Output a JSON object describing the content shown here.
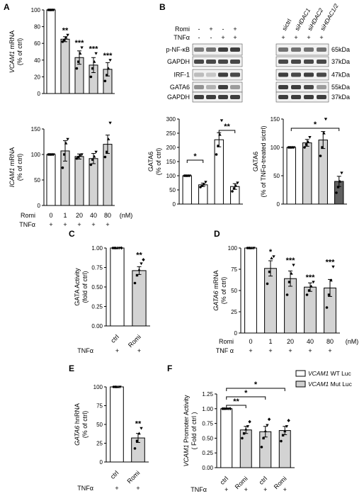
{
  "panels": {
    "A": {
      "letter": "A"
    },
    "B": {
      "letter": "B"
    },
    "C": {
      "letter": "C"
    },
    "D": {
      "letter": "D"
    },
    "E": {
      "letter": "E"
    },
    "F": {
      "letter": "F"
    }
  },
  "treatment_labels": {
    "romi": "Romi",
    "tnf": "TNFα",
    "tnf_spaced": "TNF α",
    "nm": "(nM)",
    "plus": "+",
    "minus": "-"
  },
  "western": {
    "left_rows": [
      "p-NF-κB",
      "GAPDH",
      "IRF-1",
      "GATA6",
      "GAPDH"
    ],
    "romi_signs": [
      "-",
      "+",
      "-",
      "+"
    ],
    "tnf_signs": [
      "-",
      "-",
      "+",
      "+"
    ],
    "right_lanes": [
      "sictrl",
      "siHDAC1",
      "siHDAC2",
      "siHDAC1/2"
    ],
    "right_tnf_signs": [
      "+",
      "+",
      "+",
      "+"
    ],
    "kda_labels": [
      "65kDa",
      "37kDa",
      "47kDa",
      "55kDa",
      "37kDa"
    ]
  },
  "chart_data": [
    {
      "id": "A-top",
      "type": "bar",
      "ylabel_italic": "VCAM1",
      "ylabel_rest": " mRNA",
      "ylabel2": "(% of ctrl)",
      "categories": [
        "0",
        "1",
        "20",
        "40",
        "80"
      ],
      "values": [
        100,
        65,
        43,
        34,
        29
      ],
      "errors": [
        0,
        3,
        8,
        9,
        8
      ],
      "points": [
        [
          100,
          100,
          100,
          100
        ],
        [
          62,
          64,
          67,
          70
        ],
        [
          30,
          38,
          48,
          55
        ],
        [
          20,
          30,
          38,
          48
        ],
        [
          15,
          22,
          30,
          40
        ]
      ],
      "sig": [
        "",
        "**",
        "***",
        "***",
        "***"
      ],
      "ylim": [
        0,
        100
      ],
      "yticks": [
        "0",
        "20",
        "40",
        "60",
        "80",
        "100"
      ]
    },
    {
      "id": "A-bottom",
      "type": "bar",
      "ylabel_italic": "ICAM1",
      "ylabel_rest": " mRNA",
      "ylabel2": "(% of ctrl)",
      "categories": [
        "0",
        "1",
        "20",
        "40",
        "80"
      ],
      "values": [
        100,
        107,
        96,
        92,
        120
      ],
      "errors": [
        0,
        20,
        5,
        10,
        18
      ],
      "points": [
        [
          100,
          100,
          100,
          100
        ],
        [
          74,
          100,
          122,
          130
        ],
        [
          92,
          95,
          98,
          100
        ],
        [
          80,
          90,
          96,
          105
        ],
        [
          95,
          105,
          130,
          162
        ]
      ],
      "sig": [
        "",
        "",
        "",
        "",
        ""
      ],
      "ylim": [
        0,
        150
      ],
      "yticks": [
        "0",
        "50",
        "100",
        "150"
      ]
    },
    {
      "id": "B-left",
      "type": "bar",
      "ylabel": "GATA6",
      "ylabel2": "(% of ctrl)",
      "values": [
        100,
        68,
        227,
        62
      ],
      "errors": [
        0,
        6,
        25,
        10
      ],
      "points": [
        [
          100,
          100,
          100,
          100
        ],
        [
          60,
          65,
          70,
          78
        ],
        [
          175,
          205,
          245,
          295
        ],
        [
          45,
          55,
          65,
          75
        ]
      ],
      "ylim": [
        0,
        300
      ],
      "yticks": [
        "0",
        "50",
        "100",
        "150",
        "200",
        "250",
        "300"
      ],
      "brackets": [
        {
          "from": 0,
          "to": 1,
          "label": "*"
        },
        {
          "from": 2,
          "to": 3,
          "label": "**"
        }
      ]
    },
    {
      "id": "B-right",
      "type": "bar",
      "ylabel": "GATA6",
      "ylabel2": "(% of TNFα-treated sictrl)",
      "values": [
        100,
        108,
        113,
        40
      ],
      "errors": [
        0,
        6,
        15,
        9
      ],
      "points": [
        [
          100,
          100,
          100,
          100
        ],
        [
          100,
          105,
          110,
          118
        ],
        [
          85,
          100,
          125,
          150
        ],
        [
          20,
          30,
          40,
          55
        ]
      ],
      "ylim": [
        0,
        150
      ],
      "yticks": [
        "0",
        "50",
        "100",
        "150"
      ],
      "brackets": [
        {
          "from": 0,
          "to": 3,
          "label": "*"
        }
      ]
    },
    {
      "id": "C",
      "type": "bar",
      "ylabel": "GATA Activity",
      "ylabel2": "(fold of ctrl)",
      "categories": [
        "ctrl",
        "Romi"
      ],
      "values": [
        1.0,
        0.71
      ],
      "errors": [
        0,
        0.05
      ],
      "points": [
        [
          1,
          1,
          1,
          1,
          1
        ],
        [
          0.55,
          0.65,
          0.72,
          0.8,
          0.85
        ]
      ],
      "sig": [
        "",
        "**"
      ],
      "ylim": [
        0,
        1.0
      ],
      "yticks": [
        "0.00",
        "0.25",
        "0.50",
        "0.75",
        "1.00"
      ]
    },
    {
      "id": "D",
      "type": "bar",
      "ylabel_italic": "GATA6",
      "ylabel_rest": " mRNA",
      "ylabel2": "(% of ctrl)",
      "categories": [
        "0",
        "1",
        "20",
        "40",
        "80"
      ],
      "values": [
        100,
        76,
        64,
        54,
        53
      ],
      "errors": [
        0,
        9,
        9,
        5,
        10
      ],
      "points": [
        [
          100,
          100,
          100,
          100
        ],
        [
          58,
          72,
          88,
          90
        ],
        [
          45,
          60,
          70,
          80
        ],
        [
          45,
          50,
          55,
          60
        ],
        [
          30,
          45,
          62,
          78
        ]
      ],
      "sig": [
        "",
        "*",
        "***",
        "***",
        "***"
      ],
      "ylim": [
        0,
        100
      ],
      "yticks": [
        "0",
        "25",
        "50",
        "75",
        "100"
      ]
    },
    {
      "id": "E",
      "type": "bar",
      "ylabel_italic": "GATA6",
      "ylabel_rest": " hnRNA",
      "ylabel2": "(% of ctrl)",
      "categories": [
        "ctrl",
        "Romi"
      ],
      "values": [
        100,
        32
      ],
      "errors": [
        0,
        6
      ],
      "points": [
        [
          100,
          100,
          100,
          100
        ],
        [
          18,
          28,
          38,
          45
        ]
      ],
      "sig": [
        "",
        "**"
      ],
      "ylim": [
        0,
        100
      ],
      "yticks": [
        "0",
        "25",
        "50",
        "75",
        "100"
      ]
    },
    {
      "id": "F",
      "type": "bar",
      "ylabel_italic": "VCAM1",
      "ylabel_rest": " Promoter Activity",
      "ylabel2": "( Fold of ctrl )",
      "categories": [
        "ctrl",
        "Romi",
        "ctrl",
        "Romi"
      ],
      "values": [
        1.0,
        0.64,
        0.61,
        0.63
      ],
      "errors": [
        0,
        0.06,
        0.09,
        0.07
      ],
      "points": [
        [
          1,
          1,
          1,
          1,
          1
        ],
        [
          0.5,
          0.58,
          0.65,
          0.7,
          0.78
        ],
        [
          0.35,
          0.5,
          0.62,
          0.72,
          0.82
        ],
        [
          0.45,
          0.55,
          0.62,
          0.7,
          0.8
        ]
      ],
      "ylim": [
        0,
        1.25
      ],
      "yticks": [
        "0.00",
        "0.25",
        "0.50",
        "0.75",
        "1.00",
        "1.25"
      ],
      "brackets": [
        {
          "from": 0,
          "to": 1,
          "label": "**"
        },
        {
          "from": 0,
          "to": 2,
          "label": "*"
        },
        {
          "from": 0,
          "to": 3,
          "label": "*"
        }
      ],
      "legend": [
        {
          "italic": "VCAM1",
          "rest": " WT Luc",
          "color": "#ffffff"
        },
        {
          "italic": "VCAM1",
          "rest": " Mut Luc",
          "color": "#d0d0d0"
        }
      ]
    }
  ]
}
